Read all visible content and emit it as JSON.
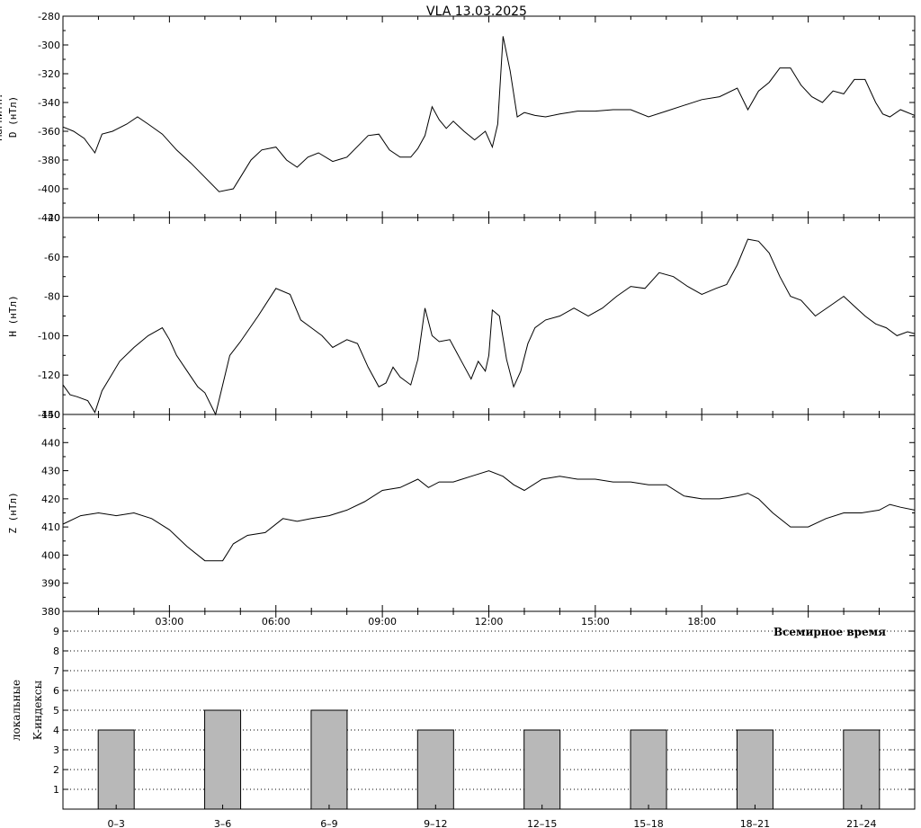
{
  "title": "VLA   13.03.2025",
  "colors": {
    "line": "#000000",
    "bar_fill": "#b8b8b8",
    "frame": "#000000",
    "grid": "#000000"
  },
  "chart_data": [
    {
      "type": "line",
      "panel": "D",
      "ylabel": "D (нТл)",
      "ylabel_clipped": "Магнитн.",
      "ylim": [
        -420,
        -280
      ],
      "yticks": [
        -420,
        -400,
        -380,
        -360,
        -340,
        -320,
        -300,
        -280
      ],
      "xlim": [
        0,
        24
      ],
      "series": [
        {
          "x": [
            0.0,
            0.3,
            0.6,
            0.9,
            1.1,
            1.4,
            1.8,
            2.1,
            2.4,
            2.8,
            3.2,
            3.6,
            4.0,
            4.4,
            4.8,
            5.0,
            5.3,
            5.6,
            6.0,
            6.3,
            6.6,
            6.9,
            7.2,
            7.6,
            8.0,
            8.4,
            8.6,
            8.9,
            9.2,
            9.5,
            9.8,
            10.0,
            10.2,
            10.4,
            10.6,
            10.8,
            11.0,
            11.3,
            11.6,
            11.9,
            12.1,
            12.25,
            12.4,
            12.6,
            12.8,
            13.0,
            13.3,
            13.6,
            14.0,
            14.5,
            15.0,
            15.5,
            16.0,
            16.5,
            17.0,
            17.5,
            18.0,
            18.5,
            19.0,
            19.3,
            19.6,
            19.9,
            20.2,
            20.5,
            20.8,
            21.1,
            21.4,
            21.7,
            22.0,
            22.3,
            22.6,
            22.9,
            23.1,
            23.3,
            23.6,
            24.0
          ],
          "y": [
            -357,
            -360,
            -365,
            -375,
            -362,
            -360,
            -355,
            -350,
            -355,
            -362,
            -373,
            -382,
            -392,
            -402,
            -400,
            -392,
            -380,
            -373,
            -371,
            -380,
            -385,
            -378,
            -375,
            -381,
            -378,
            -368,
            -363,
            -362,
            -373,
            -378,
            -378,
            -372,
            -363,
            -343,
            -352,
            -358,
            -353,
            -360,
            -366,
            -360,
            -371,
            -355,
            -294,
            -318,
            -350,
            -347,
            -349,
            -350,
            -348,
            -346,
            -346,
            -345,
            -345,
            -350,
            -346,
            -342,
            -338,
            -336,
            -330,
            -345,
            -332,
            -326,
            -316,
            -316,
            -328,
            -336,
            -340,
            -332,
            -334,
            -324,
            -324,
            -340,
            -348,
            -350,
            -345,
            -349
          ]
        }
      ]
    },
    {
      "type": "line",
      "panel": "H",
      "ylabel": "H (нТл)",
      "ylim": [
        -140,
        -40
      ],
      "yticks": [
        -140,
        -120,
        -100,
        -80,
        -60,
        -40
      ],
      "xlim": [
        0,
        24
      ],
      "series": [
        {
          "x": [
            0.0,
            0.2,
            0.4,
            0.7,
            0.9,
            1.1,
            1.3,
            1.6,
            2.0,
            2.4,
            2.8,
            3.0,
            3.2,
            3.5,
            3.8,
            4.0,
            4.3,
            4.5,
            4.7,
            5.0,
            5.5,
            6.0,
            6.4,
            6.7,
            7.0,
            7.3,
            7.6,
            8.0,
            8.3,
            8.6,
            8.9,
            9.1,
            9.3,
            9.5,
            9.8,
            10.0,
            10.2,
            10.4,
            10.6,
            10.9,
            11.2,
            11.5,
            11.7,
            11.9,
            12.0,
            12.1,
            12.3,
            12.5,
            12.7,
            12.9,
            13.1,
            13.3,
            13.6,
            14.0,
            14.4,
            14.8,
            15.2,
            15.6,
            16.0,
            16.4,
            16.8,
            17.2,
            17.6,
            18.0,
            18.4,
            18.7,
            19.0,
            19.3,
            19.6,
            19.9,
            20.2,
            20.5,
            20.8,
            21.2,
            21.6,
            22.0,
            22.3,
            22.6,
            22.9,
            23.2,
            23.5,
            23.8,
            24.0
          ],
          "y": [
            -125,
            -130,
            -131,
            -133,
            -139,
            -128,
            -122,
            -113,
            -106,
            -100,
            -96,
            -102,
            -110,
            -118,
            -126,
            -129,
            -140,
            -125,
            -110,
            -103,
            -90,
            -76,
            -79,
            -92,
            -96,
            -100,
            -106,
            -102,
            -104,
            -116,
            -126,
            -124,
            -116,
            -121,
            -125,
            -112,
            -86,
            -100,
            -103,
            -102,
            -112,
            -122,
            -113,
            -118,
            -110,
            -87,
            -90,
            -112,
            -126,
            -118,
            -104,
            -96,
            -92,
            -90,
            -86,
            -90,
            -86,
            -80,
            -75,
            -76,
            -68,
            -70,
            -75,
            -79,
            -76,
            -74,
            -64,
            -51,
            -52,
            -58,
            -70,
            -80,
            -82,
            -90,
            -85,
            -80,
            -85,
            -90,
            -94,
            -96,
            -100,
            -98,
            -99
          ]
        }
      ]
    },
    {
      "type": "line",
      "panel": "Z",
      "ylabel": "Z (нТл)",
      "ylim": [
        380,
        450
      ],
      "yticks": [
        380,
        390,
        400,
        410,
        420,
        430,
        440,
        450
      ],
      "xlim": [
        0,
        24
      ],
      "series": [
        {
          "x": [
            0.0,
            0.5,
            1.0,
            1.5,
            2.0,
            2.5,
            3.0,
            3.5,
            4.0,
            4.5,
            4.8,
            5.2,
            5.7,
            6.2,
            6.6,
            7.0,
            7.5,
            8.0,
            8.5,
            9.0,
            9.5,
            10.0,
            10.3,
            10.6,
            11.0,
            11.5,
            12.0,
            12.4,
            12.7,
            13.0,
            13.5,
            14.0,
            14.5,
            15.0,
            15.5,
            16.0,
            16.5,
            17.0,
            17.5,
            18.0,
            18.5,
            19.0,
            19.3,
            19.6,
            20.0,
            20.5,
            21.0,
            21.5,
            22.0,
            22.5,
            23.0,
            23.3,
            23.6,
            24.0
          ],
          "y": [
            411,
            414,
            415,
            414,
            415,
            413,
            409,
            403,
            398,
            398,
            404,
            407,
            408,
            413,
            412,
            413,
            414,
            416,
            419,
            423,
            424,
            427,
            424,
            426,
            426,
            428,
            430,
            428,
            425,
            423,
            427,
            428,
            427,
            427,
            426,
            426,
            425,
            425,
            421,
            420,
            420,
            421,
            422,
            420,
            415,
            410,
            410,
            413,
            415,
            415,
            416,
            418,
            417,
            416
          ]
        }
      ]
    },
    {
      "type": "bar",
      "panel": "K",
      "ylabel_line1": "локальные",
      "ylabel_line2": "K-индексы",
      "xlabel": "Всемирное время",
      "categories": [
        "0–3",
        "3–6",
        "6–9",
        "9–12",
        "12–15",
        "15–18",
        "18–21",
        "21–24"
      ],
      "values": [
        4,
        5,
        5,
        4,
        4,
        4,
        4,
        4
      ],
      "ylim": [
        0,
        10
      ],
      "yticks": [
        1,
        2,
        3,
        4,
        5,
        6,
        7,
        8,
        9
      ],
      "grid": "dotted-horizontal",
      "time_ticks": [
        "03:00",
        "06:00",
        "09:00",
        "12:00",
        "15:00",
        "18:00"
      ]
    }
  ]
}
